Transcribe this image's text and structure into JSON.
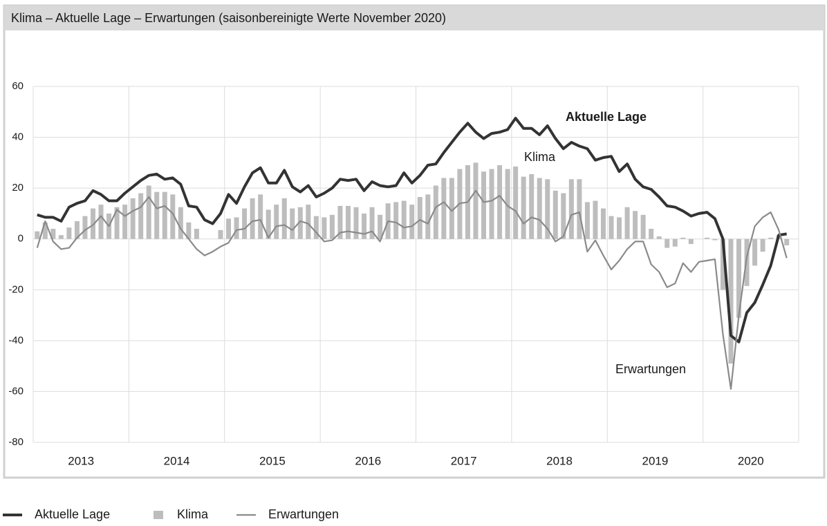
{
  "chart_data": {
    "type": "combo",
    "title": "Klima – Aktuelle Lage – Erwartungen (saisonbereinigte Werte November 2020)",
    "years": [
      "2013",
      "2014",
      "2015",
      "2016",
      "2017",
      "2018",
      "2019",
      "2020"
    ],
    "ylim": [
      -80,
      60
    ],
    "yticks": [
      -80,
      -60,
      -40,
      -20,
      0,
      20,
      40,
      60
    ],
    "grid": true,
    "series": [
      {
        "name": "Aktuelle Lage",
        "type": "line",
        "color": "#333333",
        "values": [
          9.5,
          8.5,
          8.5,
          7,
          12.5,
          14,
          15,
          19,
          17.5,
          15,
          15,
          18,
          20.5,
          23,
          25,
          25.5,
          23.5,
          24,
          21.5,
          13,
          12.5,
          7.5,
          6,
          10,
          17.5,
          14,
          20.5,
          26,
          28,
          22,
          22,
          27,
          20.5,
          18.5,
          21,
          16.5,
          18,
          20,
          23.5,
          23,
          23.5,
          19,
          22.5,
          21,
          20.5,
          21,
          26,
          22,
          25,
          29,
          29.5,
          34,
          38,
          42,
          45.5,
          42,
          39.5,
          41.5,
          42,
          43,
          47.5,
          43.5,
          43.5,
          41,
          44.5,
          39.5,
          35.5,
          38,
          36.5,
          35.5,
          31,
          32,
          32.5,
          26.5,
          29.5,
          23.5,
          20.5,
          19.5,
          16.5,
          13,
          12.5,
          11,
          9,
          10,
          10.5,
          8,
          0,
          -38,
          -40.5,
          -29,
          -25,
          -18,
          -10.5,
          1.5,
          2
        ]
      },
      {
        "name": "Klima",
        "type": "bar",
        "color": "#bdbdbd",
        "values": [
          3,
          6.5,
          4,
          1.5,
          4.5,
          7,
          9,
          12,
          13.5,
          10,
          12.5,
          13.5,
          16,
          18,
          21,
          18.5,
          18.5,
          17.5,
          12.5,
          6.5,
          4,
          0,
          0,
          3.5,
          8,
          8.5,
          12,
          16,
          17.5,
          11.5,
          13.5,
          16,
          12,
          12.5,
          13.5,
          9,
          8.5,
          9.5,
          13,
          13,
          12.5,
          10,
          12.5,
          9.5,
          14,
          14.5,
          15,
          13.5,
          16.5,
          17.5,
          21,
          24,
          24,
          27.5,
          29,
          30,
          26.5,
          27.5,
          29,
          27.5,
          28.5,
          24.5,
          25.5,
          24,
          23.5,
          19,
          18,
          23.5,
          23.5,
          14.5,
          15,
          12,
          9,
          8.5,
          12.5,
          11,
          9.5,
          4,
          1,
          -3.5,
          -3,
          0.5,
          -2,
          0,
          0.5,
          -0.5,
          -20,
          -49,
          -31,
          -18.5,
          -10.5,
          -5,
          0.5,
          1.5,
          -2.5
        ]
      },
      {
        "name": "Erwartungen",
        "type": "line",
        "color": "#8a8a8a",
        "values": [
          -3.5,
          7,
          -1,
          -4,
          -3.5,
          0.5,
          3.5,
          5.5,
          9,
          5,
          11.5,
          9,
          11,
          12.5,
          16.5,
          12,
          13,
          10,
          4,
          0,
          -4,
          -6.5,
          -5,
          -3,
          -1.5,
          3.5,
          4,
          7,
          7.5,
          0.5,
          5,
          5.5,
          3.5,
          7,
          6,
          2.5,
          -1,
          -0.5,
          2.5,
          3,
          2.5,
          2,
          3,
          -1,
          7,
          6.5,
          4.5,
          5,
          7.5,
          6,
          12.5,
          14.5,
          11,
          14,
          14.5,
          19,
          14.5,
          15,
          17,
          13,
          11,
          6,
          8.5,
          7.5,
          4,
          -1,
          1,
          9.5,
          10.5,
          -5,
          -0.5,
          -6.5,
          -12,
          -8.5,
          -4,
          -1,
          -1,
          -10,
          -13,
          -19,
          -17.5,
          -9.5,
          -13,
          -9,
          -8.5,
          -8,
          -37.5,
          -59,
          -30,
          -7,
          5,
          8.5,
          10.5,
          3.5,
          -7.5
        ]
      }
    ],
    "annotations": [
      "Aktuelle Lage",
      "Klima",
      "Erwartungen"
    ]
  }
}
